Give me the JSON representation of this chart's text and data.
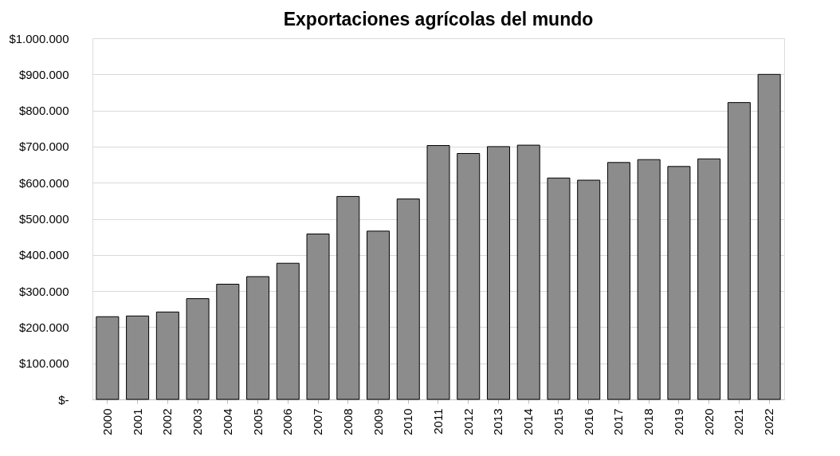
{
  "chart_data": {
    "type": "bar",
    "title": "Exportaciones agrícolas del mundo",
    "categories": [
      "2000",
      "2001",
      "2002",
      "2003",
      "2004",
      "2005",
      "2006",
      "2007",
      "2008",
      "2009",
      "2010",
      "2011",
      "2012",
      "2013",
      "2014",
      "2015",
      "2016",
      "2017",
      "2018",
      "2019",
      "2020",
      "2021",
      "2022"
    ],
    "values": [
      229000,
      231000,
      242000,
      279000,
      319000,
      340000,
      377000,
      458000,
      562000,
      466000,
      555000,
      703000,
      681000,
      700000,
      704000,
      613000,
      607000,
      656000,
      664000,
      645000,
      666000,
      822000,
      900000
    ],
    "color": "#8c8c8c",
    "ylim": [
      0,
      1000000
    ],
    "yticks": [
      {
        "value": 0,
        "label": "$-"
      },
      {
        "value": 100000,
        "label": "$100.000"
      },
      {
        "value": 200000,
        "label": "$200.000"
      },
      {
        "value": 300000,
        "label": "$300.000"
      },
      {
        "value": 400000,
        "label": "$400.000"
      },
      {
        "value": 500000,
        "label": "$500.000"
      },
      {
        "value": 600000,
        "label": "$600.000"
      },
      {
        "value": 700000,
        "label": "$700.000"
      },
      {
        "value": 800000,
        "label": "$800.000"
      },
      {
        "value": 900000,
        "label": "$900.000"
      },
      {
        "value": 1000000,
        "label": "$1.000.000"
      }
    ],
    "grid": "y"
  }
}
